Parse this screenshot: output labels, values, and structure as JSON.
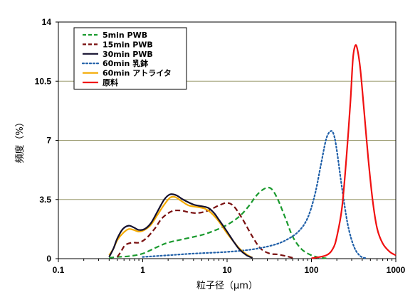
{
  "chart_data": {
    "type": "line",
    "xlabel": "粒子径（μm）",
    "ylabel": "頻度（%）",
    "xscale": "log",
    "xlim": [
      0.1,
      1000
    ],
    "ylim": [
      0,
      14
    ],
    "x_ticks": [
      "0.1",
      "1",
      "10",
      "100",
      "1000"
    ],
    "y_ticks": [
      "0",
      "3.5",
      "7",
      "10.5",
      "14"
    ],
    "grid": "horizontal",
    "legend_position": "top-left",
    "series": [
      {
        "name": "5min  PWB",
        "color": "#1a9a2e",
        "style": "dashed",
        "points": [
          [
            0.4,
            0.05
          ],
          [
            0.5,
            0.1
          ],
          [
            0.7,
            0.15
          ],
          [
            1.0,
            0.3
          ],
          [
            1.5,
            0.7
          ],
          [
            2,
            0.95
          ],
          [
            3,
            1.15
          ],
          [
            5,
            1.4
          ],
          [
            7,
            1.65
          ],
          [
            10,
            2.0
          ],
          [
            14,
            2.5
          ],
          [
            18,
            3.1
          ],
          [
            22,
            3.7
          ],
          [
            26,
            4.05
          ],
          [
            30,
            4.2
          ],
          [
            34,
            4.1
          ],
          [
            40,
            3.5
          ],
          [
            50,
            2.3
          ],
          [
            60,
            1.3
          ],
          [
            75,
            0.6
          ],
          [
            95,
            0.25
          ],
          [
            120,
            0.08
          ],
          [
            150,
            0.02
          ]
        ]
      },
      {
        "name": "15min PWB",
        "color": "#7a1010",
        "style": "dashed",
        "points": [
          [
            0.5,
            0.1
          ],
          [
            0.55,
            0.4
          ],
          [
            0.62,
            0.8
          ],
          [
            0.75,
            0.95
          ],
          [
            0.9,
            0.95
          ],
          [
            1.1,
            1.2
          ],
          [
            1.4,
            1.8
          ],
          [
            1.7,
            2.4
          ],
          [
            2.2,
            2.8
          ],
          [
            2.8,
            2.85
          ],
          [
            3.5,
            2.75
          ],
          [
            4.5,
            2.7
          ],
          [
            6,
            2.85
          ],
          [
            8,
            3.15
          ],
          [
            10,
            3.3
          ],
          [
            12,
            3.1
          ],
          [
            15,
            2.4
          ],
          [
            20,
            1.3
          ],
          [
            25,
            0.6
          ],
          [
            32,
            0.3
          ],
          [
            40,
            0.25
          ],
          [
            50,
            0.15
          ],
          [
            60,
            0.05
          ]
        ]
      },
      {
        "name": "30min PWB",
        "color": "#14102e",
        "style": "solid",
        "points": [
          [
            0.4,
            0.1
          ],
          [
            0.45,
            0.6
          ],
          [
            0.5,
            1.2
          ],
          [
            0.58,
            1.75
          ],
          [
            0.68,
            1.95
          ],
          [
            0.78,
            1.85
          ],
          [
            0.9,
            1.7
          ],
          [
            1.05,
            1.75
          ],
          [
            1.25,
            2.1
          ],
          [
            1.5,
            2.8
          ],
          [
            1.8,
            3.5
          ],
          [
            2.1,
            3.8
          ],
          [
            2.5,
            3.75
          ],
          [
            3,
            3.5
          ],
          [
            4,
            3.2
          ],
          [
            5,
            3.1
          ],
          [
            6,
            3.0
          ],
          [
            7,
            2.7
          ],
          [
            8,
            2.3
          ],
          [
            10,
            1.6
          ],
          [
            12,
            1.0
          ],
          [
            14,
            0.55
          ],
          [
            17,
            0.2
          ],
          [
            20,
            0.05
          ]
        ]
      },
      {
        "name": "60min 乳鉢",
        "color": "#1f5fa8",
        "style": "dotted",
        "points": [
          [
            1,
            0.1
          ],
          [
            2,
            0.2
          ],
          [
            4,
            0.3
          ],
          [
            10,
            0.4
          ],
          [
            20,
            0.55
          ],
          [
            35,
            0.8
          ],
          [
            50,
            1.1
          ],
          [
            70,
            1.6
          ],
          [
            90,
            2.4
          ],
          [
            110,
            3.8
          ],
          [
            130,
            5.6
          ],
          [
            150,
            7.1
          ],
          [
            170,
            7.55
          ],
          [
            185,
            7.3
          ],
          [
            200,
            6.4
          ],
          [
            230,
            4.2
          ],
          [
            270,
            2.0
          ],
          [
            320,
            0.7
          ],
          [
            380,
            0.15
          ],
          [
            450,
            0.02
          ]
        ]
      },
      {
        "name": "60min アトライタ",
        "color": "#f4aa00",
        "style": "solid",
        "points": [
          [
            0.4,
            0.2
          ],
          [
            0.45,
            0.6
          ],
          [
            0.5,
            1.1
          ],
          [
            0.58,
            1.5
          ],
          [
            0.68,
            1.75
          ],
          [
            0.78,
            1.7
          ],
          [
            0.9,
            1.6
          ],
          [
            1.05,
            1.7
          ],
          [
            1.25,
            2.0
          ],
          [
            1.5,
            2.6
          ],
          [
            1.8,
            3.2
          ],
          [
            2.1,
            3.6
          ],
          [
            2.4,
            3.65
          ],
          [
            2.8,
            3.45
          ],
          [
            3.5,
            3.15
          ],
          [
            4.5,
            3.05
          ],
          [
            5.5,
            2.95
          ],
          [
            6.5,
            2.7
          ],
          [
            8,
            2.2
          ],
          [
            10,
            1.5
          ],
          [
            12,
            1.0
          ],
          [
            14,
            0.6
          ],
          [
            17,
            0.25
          ],
          [
            20,
            0.05
          ]
        ]
      },
      {
        "name": "原料",
        "color": "#f01010",
        "style": "solid",
        "points": [
          [
            100,
            0.02
          ],
          [
            150,
            0.2
          ],
          [
            180,
            0.6
          ],
          [
            200,
            1.3
          ],
          [
            230,
            3.0
          ],
          [
            260,
            6.0
          ],
          [
            290,
            9.3
          ],
          [
            310,
            11.8
          ],
          [
            330,
            12.6
          ],
          [
            350,
            12.4
          ],
          [
            380,
            11.2
          ],
          [
            420,
            8.8
          ],
          [
            470,
            6.0
          ],
          [
            530,
            3.5
          ],
          [
            600,
            1.8
          ],
          [
            700,
            0.9
          ],
          [
            850,
            0.4
          ],
          [
            1000,
            0.2
          ]
        ]
      }
    ]
  }
}
